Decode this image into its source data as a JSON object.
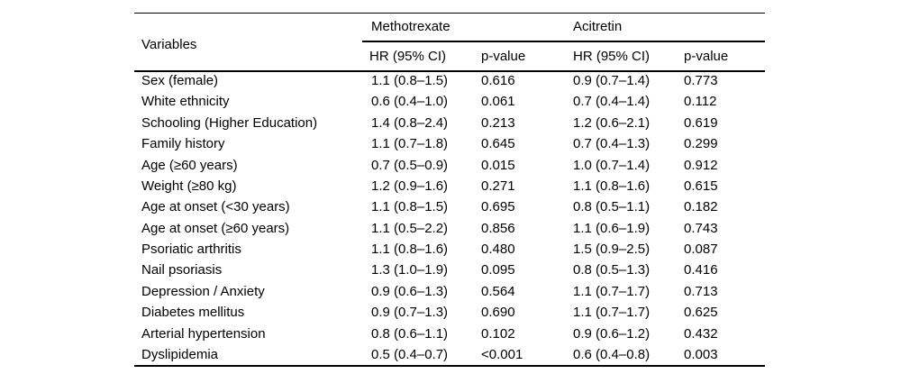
{
  "colors": {
    "background": "#ffffff",
    "text": "#000000",
    "rule": "#000000"
  },
  "table": {
    "header": {
      "variables_label": "Variables",
      "group1_label": "Methotrexate",
      "group2_label": "Acitretin",
      "hr_ci_label": "HR (95% CI)",
      "pvalue_label": "p-value"
    },
    "rows": [
      {
        "variable": "Sex (female)",
        "mtx_hr": "1.1 (0.8–1.5)",
        "mtx_p": "0.616",
        "aci_hr": "0.9 (0.7–1.4)",
        "aci_p": "0.773"
      },
      {
        "variable": "White ethnicity",
        "mtx_hr": "0.6 (0.4–1.0)",
        "mtx_p": "0.061",
        "aci_hr": "0.7 (0.4–1.4)",
        "aci_p": "0.112"
      },
      {
        "variable": "Schooling (Higher Education)",
        "mtx_hr": "1.4 (0.8–2.4)",
        "mtx_p": "0.213",
        "aci_hr": "1.2 (0.6–2.1)",
        "aci_p": "0.619"
      },
      {
        "variable": "Family history",
        "mtx_hr": "1.1 (0.7–1.8)",
        "mtx_p": "0.645",
        "aci_hr": "0.7 (0.4–1.3)",
        "aci_p": "0.299"
      },
      {
        "variable": "Age (≥60 years)",
        "mtx_hr": "0.7 (0.5–0.9)",
        "mtx_p": "0.015",
        "aci_hr": "1.0 (0.7–1.4)",
        "aci_p": "0.912"
      },
      {
        "variable": "Weight (≥80 kg)",
        "mtx_hr": "1.2 (0.9–1.6)",
        "mtx_p": "0.271",
        "aci_hr": "1.1 (0.8–1.6)",
        "aci_p": "0.615"
      },
      {
        "variable": "Age at onset (<30 years)",
        "mtx_hr": "1.1 (0.8–1.5)",
        "mtx_p": "0.695",
        "aci_hr": "0.8 (0.5–1.1)",
        "aci_p": "0.182"
      },
      {
        "variable": "Age at onset (≥60 years)",
        "mtx_hr": "1.1 (0.5–2.2)",
        "mtx_p": "0.856",
        "aci_hr": "1.1 (0.6–1.9)",
        "aci_p": "0.743"
      },
      {
        "variable": "Psoriatic arthritis",
        "mtx_hr": "1.1 (0.8–1.6)",
        "mtx_p": "0.480",
        "aci_hr": "1.5 (0.9–2.5)",
        "aci_p": "0.087"
      },
      {
        "variable": "Nail psoriasis",
        "mtx_hr": "1.3 (1.0–1.9)",
        "mtx_p": "0.095",
        "aci_hr": "0.8 (0.5–1.3)",
        "aci_p": "0.416"
      },
      {
        "variable": "Depression / Anxiety",
        "mtx_hr": "0.9 (0.6–1.3)",
        "mtx_p": "0.564",
        "aci_hr": "1.1 (0.7–1.7)",
        "aci_p": "0.713"
      },
      {
        "variable": "Diabetes mellitus",
        "mtx_hr": "0.9 (0.7–1.3)",
        "mtx_p": "0.690",
        "aci_hr": "1.1 (0.7–1.7)",
        "aci_p": "0.625"
      },
      {
        "variable": "Arterial hypertension",
        "mtx_hr": "0.8 (0.6–1.1)",
        "mtx_p": "0.102",
        "aci_hr": "0.9 (0.6–1.2)",
        "aci_p": "0.432"
      },
      {
        "variable": "Dyslipidemia",
        "mtx_hr": "0.5 (0.4–0.7)",
        "mtx_p": "<0.001",
        "aci_hr": "0.6 (0.4–0.8)",
        "aci_p": "0.003"
      }
    ]
  }
}
